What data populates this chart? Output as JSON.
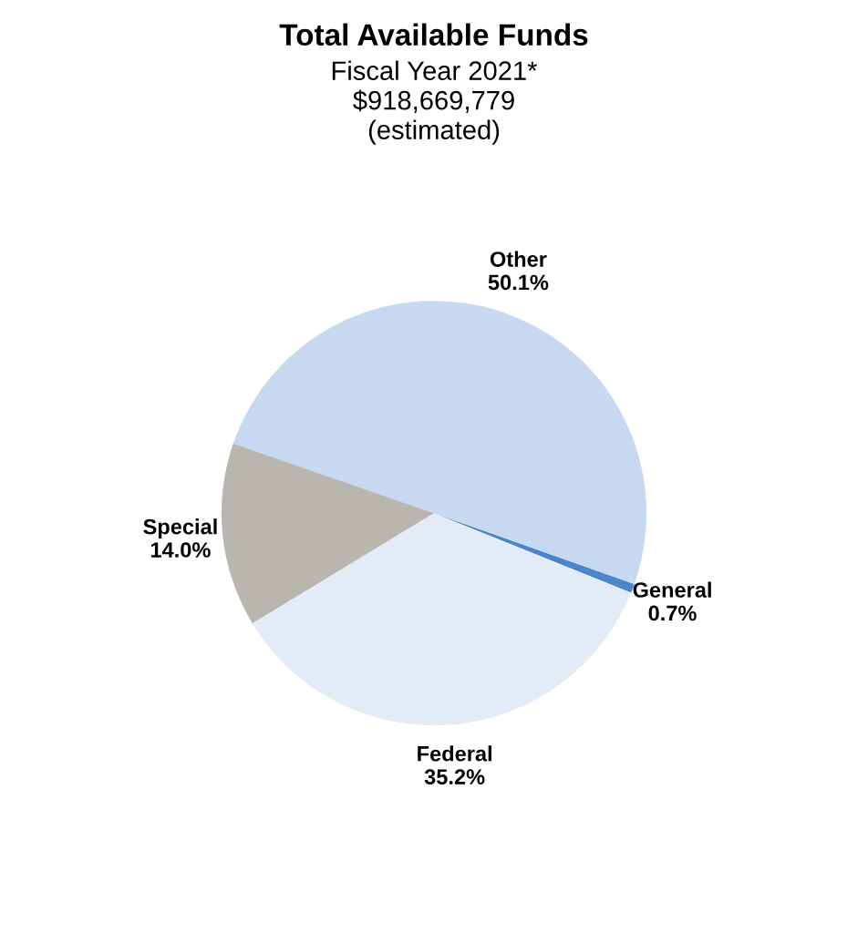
{
  "chart_data": {
    "type": "pie",
    "title": "Total Available Funds",
    "subtitle": "Fiscal Year 2021*\n$918,669,779\n(estimated)",
    "categories": [
      "General",
      "Other",
      "Special",
      "Federal"
    ],
    "values": [
      0.7,
      50.1,
      14.0,
      35.2
    ],
    "value_labels": [
      "0.7%",
      "50.1%",
      "14.0%",
      "35.2%"
    ],
    "colors": [
      "#4a86c8",
      "#c6d9f0",
      "#b9b5af",
      "#e3ebf6"
    ],
    "legend": false
  }
}
